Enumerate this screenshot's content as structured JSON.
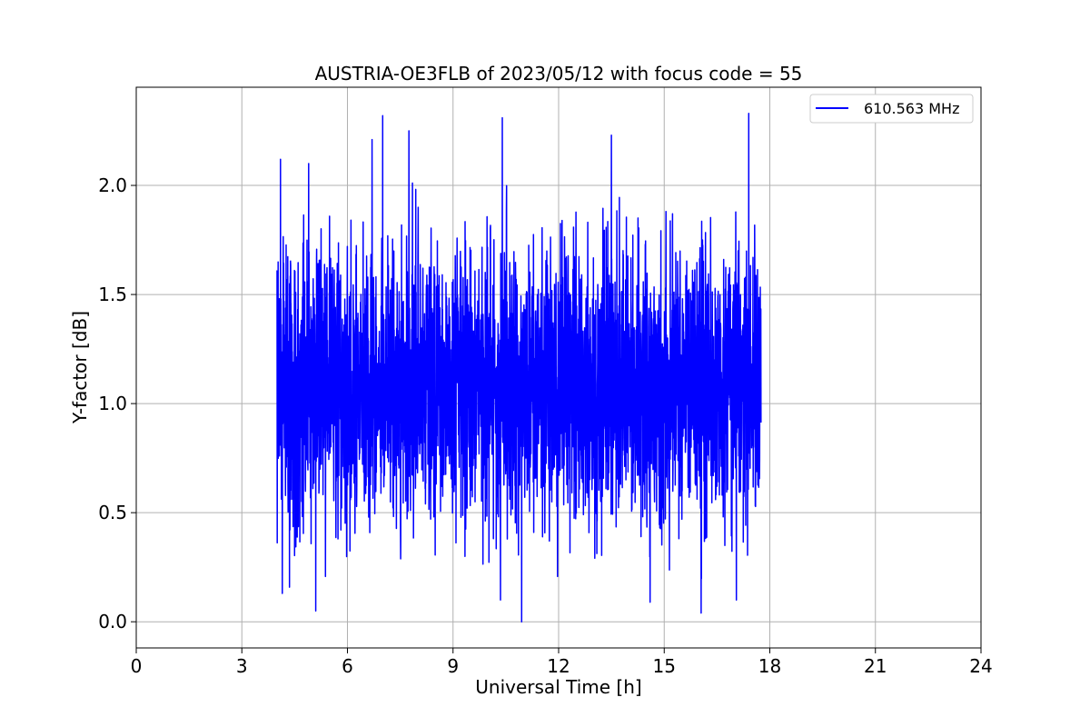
{
  "chart_data": {
    "type": "line",
    "title": "AUSTRIA-OE3FLB of 2023/05/12 with focus code = 55",
    "xlabel": "Universal Time [h]",
    "ylabel": "Y-factor [dB]",
    "xlim": [
      0,
      24
    ],
    "ylim": [
      -0.12,
      2.45
    ],
    "xticks": [
      0,
      3,
      6,
      9,
      12,
      15,
      18,
      21,
      24
    ],
    "xtick_labels": [
      "0",
      "3",
      "6",
      "9",
      "12",
      "15",
      "18",
      "21",
      "24"
    ],
    "yticks": [
      0.0,
      0.5,
      1.0,
      1.5,
      2.0
    ],
    "ytick_labels": [
      "0.0",
      "0.5",
      "1.0",
      "1.5",
      "2.0"
    ],
    "grid": true,
    "legend_position": "top-right",
    "series": [
      {
        "name": "610.563 MHz",
        "color": "#0000ff",
        "x_start": 4.0,
        "x_end": 17.75,
        "value_min": 0.0,
        "value_max": 2.33,
        "typical_low": 0.6,
        "typical_high": 1.6,
        "peaks": [
          {
            "x": 4.1,
            "y": 2.12
          },
          {
            "x": 4.9,
            "y": 2.1
          },
          {
            "x": 6.7,
            "y": 2.21
          },
          {
            "x": 7.0,
            "y": 2.32
          },
          {
            "x": 7.75,
            "y": 2.25
          },
          {
            "x": 10.4,
            "y": 2.31
          },
          {
            "x": 13.5,
            "y": 2.23
          },
          {
            "x": 17.4,
            "y": 2.33
          }
        ],
        "troughs": [
          {
            "x": 4.15,
            "y": 0.13
          },
          {
            "x": 5.1,
            "y": 0.05
          },
          {
            "x": 10.35,
            "y": 0.1
          },
          {
            "x": 10.95,
            "y": 0.0
          },
          {
            "x": 14.6,
            "y": 0.09
          },
          {
            "x": 16.05,
            "y": 0.04
          },
          {
            "x": 17.05,
            "y": 0.1
          }
        ]
      }
    ]
  }
}
